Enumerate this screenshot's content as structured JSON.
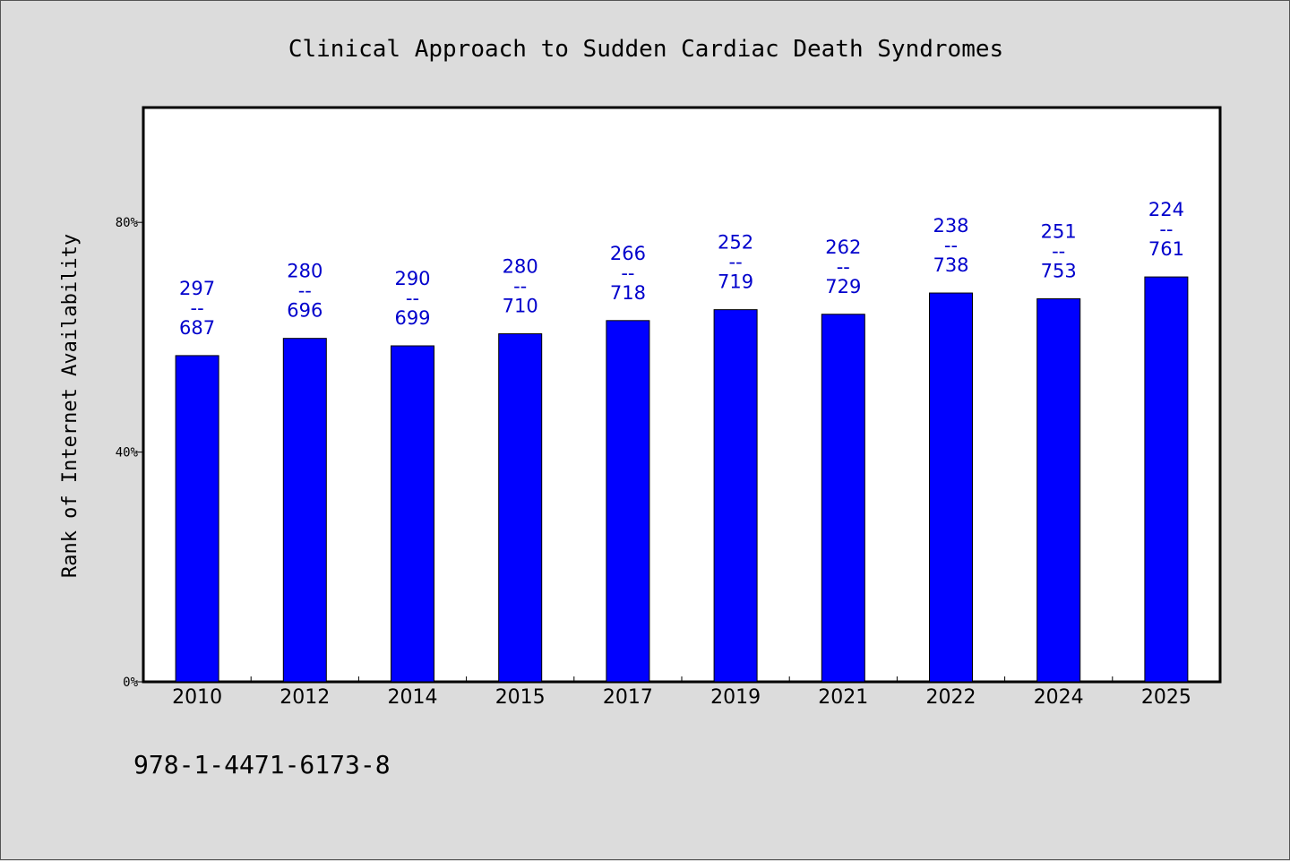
{
  "chart_data": {
    "type": "bar",
    "title": "Clinical Approach to Sudden Cardiac Death Syndromes",
    "xlabel": "",
    "ylabel": "Rank of Internet Availability",
    "ylim": [
      0,
      1.0
    ],
    "yticks": [
      0,
      0.4,
      0.8
    ],
    "ytick_labels": [
      "0%",
      "40%",
      "80%"
    ],
    "categories": [
      "2010",
      "2012",
      "2014",
      "2015",
      "2017",
      "2019",
      "2021",
      "2022",
      "2024",
      "2025"
    ],
    "series": [
      {
        "values": [
          0.568,
          0.598,
          0.585,
          0.606,
          0.629,
          0.648,
          0.64,
          0.677,
          0.667,
          0.705
        ]
      }
    ],
    "annotations": [
      {
        "numerator": "297",
        "separator": "--",
        "denominator": "687"
      },
      {
        "numerator": "280",
        "separator": "--",
        "denominator": "696"
      },
      {
        "numerator": "290",
        "separator": "--",
        "denominator": "699"
      },
      {
        "numerator": "280",
        "separator": "--",
        "denominator": "710"
      },
      {
        "numerator": "266",
        "separator": "--",
        "denominator": "718"
      },
      {
        "numerator": "252",
        "separator": "--",
        "denominator": "719"
      },
      {
        "numerator": "262",
        "separator": "--",
        "denominator": "729"
      },
      {
        "numerator": "238",
        "separator": "--",
        "denominator": "738"
      },
      {
        "numerator": "251",
        "separator": "--",
        "denominator": "753"
      },
      {
        "numerator": "224",
        "separator": "--",
        "denominator": "761"
      }
    ],
    "grid": false,
    "colors": {
      "bar": "#0000ff",
      "annotation": "#0000cc",
      "plot_bg": "#ffffff",
      "page_bg": "#dcdcdc"
    }
  },
  "footer": {
    "isbn": "978-1-4471-6173-8"
  }
}
